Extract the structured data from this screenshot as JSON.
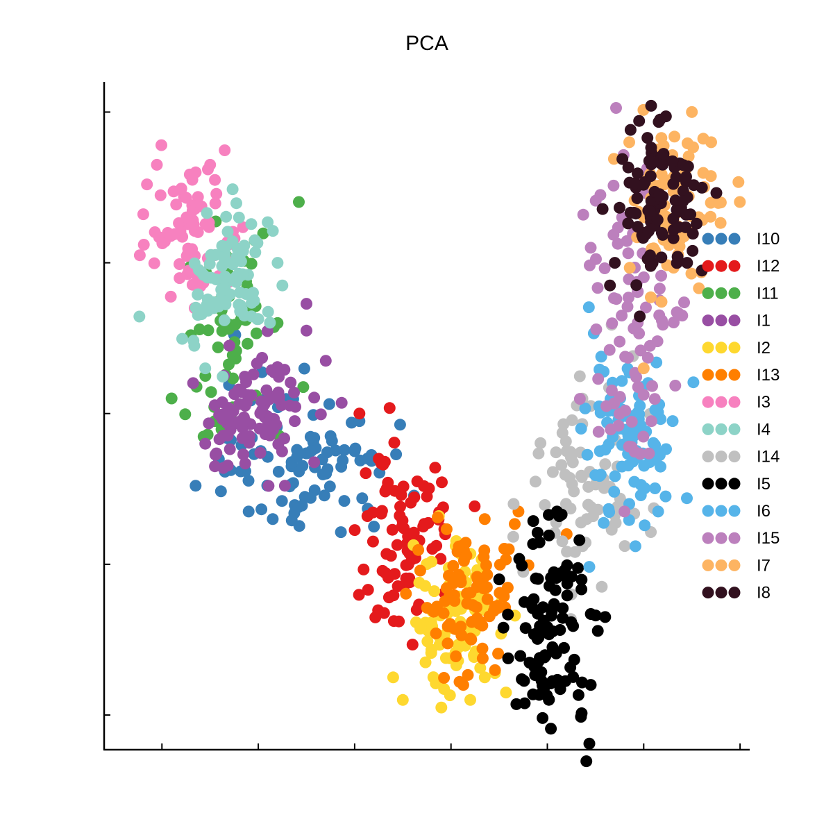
{
  "chart_data": {
    "type": "scatter",
    "title": "PCA",
    "xlabel": "",
    "ylabel": "",
    "xlim": [
      -0.6,
      6.1
    ],
    "ylim": [
      -0.23,
      4.2
    ],
    "xticks": [
      0,
      1,
      2,
      3,
      4,
      5,
      6
    ],
    "yticks": [
      0,
      1,
      2,
      3,
      4
    ],
    "grid": false,
    "legend_position": "right",
    "series": [
      {
        "name": "I10",
        "color": "#377eb8",
        "clusters": [
          {
            "cx": 1.6,
            "cy": 1.65,
            "sx": 0.42,
            "sy": 0.28,
            "n": 70,
            "seed": 1
          },
          {
            "cx": 0.9,
            "cy": 1.95,
            "sx": 0.25,
            "sy": 0.3,
            "n": 20,
            "seed": 2
          }
        ],
        "outliers": [
          [
            0.9,
            1.35
          ],
          [
            1.15,
            1.3
          ],
          [
            2.2,
            1.25
          ],
          [
            2.05,
            1.95
          ],
          [
            1.75,
            1.85
          ],
          [
            2.0,
            1.75
          ]
        ]
      },
      {
        "name": "I12",
        "color": "#e41a1c",
        "clusters": [
          {
            "cx": 2.5,
            "cy": 1.15,
            "sx": 0.25,
            "sy": 0.3,
            "n": 80,
            "seed": 3
          }
        ],
        "outliers": [
          [
            2.05,
            2.0
          ],
          [
            2.75,
            1.45
          ],
          [
            2.25,
            1.7
          ],
          [
            2.65,
            1.55
          ]
        ]
      },
      {
        "name": "I11",
        "color": "#4daf4a",
        "clusters": [
          {
            "cx": 0.65,
            "cy": 2.55,
            "sx": 0.28,
            "sy": 0.35,
            "n": 60,
            "seed": 4
          }
        ],
        "outliers": [
          [
            0.1,
            2.1
          ],
          [
            1.2,
            2.6
          ],
          [
            0.55,
            1.95
          ]
        ]
      },
      {
        "name": "I1",
        "color": "#984ea3",
        "clusters": [
          {
            "cx": 0.95,
            "cy": 2.0,
            "sx": 0.28,
            "sy": 0.22,
            "n": 90,
            "seed": 5
          }
        ],
        "outliers": [
          [
            1.5,
            2.55
          ],
          [
            1.7,
            2.35
          ],
          [
            0.55,
            1.65
          ],
          [
            0.45,
            1.8
          ],
          [
            0.7,
            2.45
          ]
        ]
      },
      {
        "name": "I2",
        "color": "#fed82f",
        "clusters": [
          {
            "cx": 3.05,
            "cy": 0.65,
            "sx": 0.25,
            "sy": 0.25,
            "n": 90,
            "seed": 6
          }
        ],
        "outliers": [
          [
            2.5,
            0.1
          ],
          [
            2.9,
            0.05
          ],
          [
            3.2,
            0.1
          ],
          [
            3.35,
            0.25
          ],
          [
            2.4,
            0.25
          ]
        ]
      },
      {
        "name": "I13",
        "color": "#ff7f00",
        "clusters": [
          {
            "cx": 3.2,
            "cy": 0.8,
            "sx": 0.22,
            "sy": 0.22,
            "n": 85,
            "seed": 7
          }
        ],
        "outliers": [
          [
            3.35,
            1.3
          ],
          [
            3.7,
            1.35
          ],
          [
            4.2,
            1.2
          ],
          [
            3.6,
            1.1
          ]
        ]
      },
      {
        "name": "I3",
        "color": "#f781bf",
        "clusters": [
          {
            "cx": 0.3,
            "cy": 3.2,
            "sx": 0.22,
            "sy": 0.22,
            "n": 70,
            "seed": 8
          }
        ],
        "outliers": [
          [
            -0.23,
            3.05
          ],
          [
            0.35,
            3.6
          ],
          [
            0.5,
            3.65
          ],
          [
            0.55,
            3.55
          ]
        ]
      },
      {
        "name": "I4",
        "color": "#8dd3c7",
        "clusters": [
          {
            "cx": 0.7,
            "cy": 2.9,
            "sx": 0.25,
            "sy": 0.25,
            "n": 85,
            "seed": 9
          }
        ],
        "outliers": [
          [
            1.25,
            2.85
          ],
          [
            0.45,
            2.3
          ],
          [
            1.2,
            3.0
          ],
          [
            0.8,
            3.3
          ]
        ]
      },
      {
        "name": "I14",
        "color": "#c0c0c0",
        "clusters": [
          {
            "cx": 4.4,
            "cy": 1.55,
            "sx": 0.3,
            "sy": 0.35,
            "n": 70,
            "seed": 10
          }
        ],
        "outliers": [
          [
            3.65,
            1.4
          ],
          [
            4.2,
            1.75
          ],
          [
            4.45,
            2.05
          ],
          [
            3.75,
            0.95
          ],
          [
            4.25,
            0.8
          ]
        ]
      },
      {
        "name": "I5",
        "color": "#000000",
        "clusters": [
          {
            "cx": 4.05,
            "cy": 0.6,
            "sx": 0.2,
            "sy": 0.35,
            "n": 100,
            "seed": 11
          }
        ],
        "outliers": [
          [
            3.95,
            -0.02
          ],
          [
            4.45,
            0.2
          ],
          [
            4.6,
            0.65
          ],
          [
            3.5,
            0.9
          ],
          [
            4.1,
            1.35
          ]
        ]
      },
      {
        "name": "I6",
        "color": "#56b4e9",
        "clusters": [
          {
            "cx": 4.85,
            "cy": 1.85,
            "sx": 0.22,
            "sy": 0.3,
            "n": 90,
            "seed": 12
          }
        ],
        "outliers": [
          [
            5.15,
            1.35
          ],
          [
            4.85,
            1.4
          ],
          [
            5.3,
            1.95
          ],
          [
            4.35,
            1.9
          ],
          [
            5.05,
            2.2
          ]
        ]
      },
      {
        "name": "I15",
        "color": "#bc80bd",
        "clusters": [
          {
            "cx": 4.9,
            "cy": 2.7,
            "sx": 0.22,
            "sy": 0.5,
            "n": 90,
            "seed": 13
          }
        ],
        "outliers": [
          [
            4.45,
            3.1
          ],
          [
            4.55,
            3.45
          ],
          [
            5.4,
            2.65
          ],
          [
            4.8,
            1.35
          ]
        ]
      },
      {
        "name": "I7",
        "color": "#fdb462",
        "clusters": [
          {
            "cx": 5.3,
            "cy": 3.4,
            "sx": 0.25,
            "sy": 0.3,
            "n": 85,
            "seed": 14
          }
        ],
        "outliers": [
          [
            5.5,
            4.0
          ],
          [
            5.7,
            3.8
          ],
          [
            4.85,
            3.8
          ],
          [
            5.8,
            3.4
          ],
          [
            5.0,
            2.3
          ]
        ]
      },
      {
        "name": "I8",
        "color": "#32111f",
        "clusters": [
          {
            "cx": 5.2,
            "cy": 3.35,
            "sx": 0.22,
            "sy": 0.25,
            "n": 100,
            "seed": 15
          }
        ],
        "outliers": [
          [
            5.17,
            3.95
          ],
          [
            4.7,
            3.0
          ],
          [
            4.65,
            2.85
          ],
          [
            5.45,
            3.0
          ]
        ]
      }
    ]
  }
}
